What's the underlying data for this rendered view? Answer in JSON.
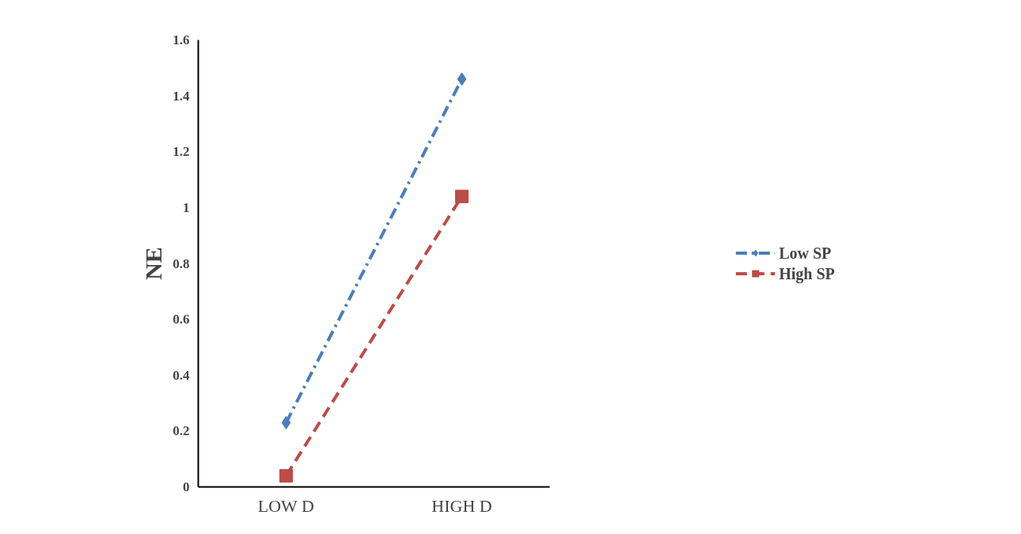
{
  "chart_data": {
    "type": "line",
    "ylabel": "NE",
    "categories": [
      "LOW D",
      "HIGH D"
    ],
    "series": [
      {
        "name": "Low SP",
        "color": "#4a7ebb",
        "values": [
          0.23,
          1.46
        ],
        "marker": "diamond",
        "line_style": "dashdot"
      },
      {
        "name": "High SP",
        "color": "#be4b48",
        "values": [
          0.04,
          1.04
        ],
        "marker": "square",
        "line_style": "dashed"
      }
    ],
    "ylim": [
      0,
      1.6
    ],
    "yticks": [
      0,
      0.2,
      0.4,
      0.6,
      0.8,
      1,
      1.2,
      1.4,
      1.6
    ],
    "grid": false,
    "legend": "right"
  }
}
